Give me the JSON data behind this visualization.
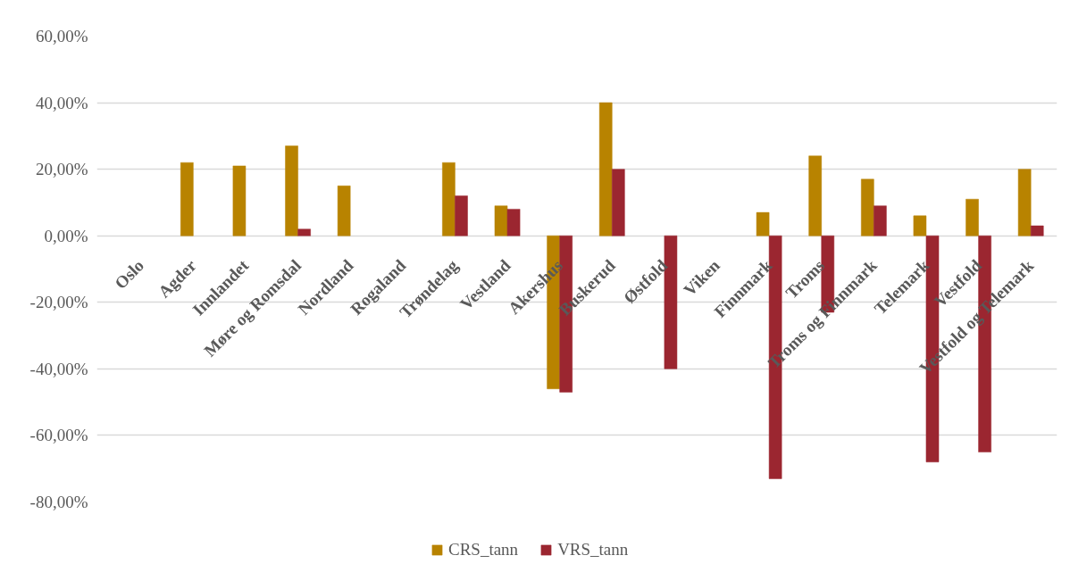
{
  "chart_data": {
    "type": "bar",
    "categories": [
      "Oslo",
      "Agder",
      "Innlandet",
      "Møre og Romsdal",
      "Nordland",
      "Rogaland",
      "Trøndelag",
      "Vestland",
      "Akershus",
      "Buskerud",
      "Østfold",
      "Viken",
      "Finnmark",
      "Troms",
      "Troms og Finnmark",
      "Telemark",
      "Vestfold",
      "Vestfold og Telemark"
    ],
    "series": [
      {
        "name": "CRS_tann",
        "color": "#b88300",
        "values": [
          null,
          22,
          21,
          27,
          15,
          null,
          22,
          9,
          -46,
          40,
          null,
          null,
          7,
          24,
          17,
          6,
          11,
          20
        ]
      },
      {
        "name": "VRS_tann",
        "color": "#9b2630",
        "values": [
          null,
          null,
          null,
          2,
          null,
          null,
          12,
          8,
          -47,
          20,
          -40,
          null,
          -73,
          -23,
          9,
          -68,
          -65,
          3
        ]
      }
    ],
    "ylim": [
      -80,
      60
    ],
    "yticks": [
      {
        "value": -80,
        "label": "-80,00%"
      },
      {
        "value": -60,
        "label": "-60,00%"
      },
      {
        "value": -40,
        "label": "-40,00%"
      },
      {
        "value": -20,
        "label": "-20,00%"
      },
      {
        "value": 0,
        "label": "0,00%"
      },
      {
        "value": 20,
        "label": "20,00%"
      },
      {
        "value": 40,
        "label": "40,00%"
      },
      {
        "value": 60,
        "label": "60,00%"
      }
    ],
    "grid": "y",
    "legend": "bottom"
  }
}
